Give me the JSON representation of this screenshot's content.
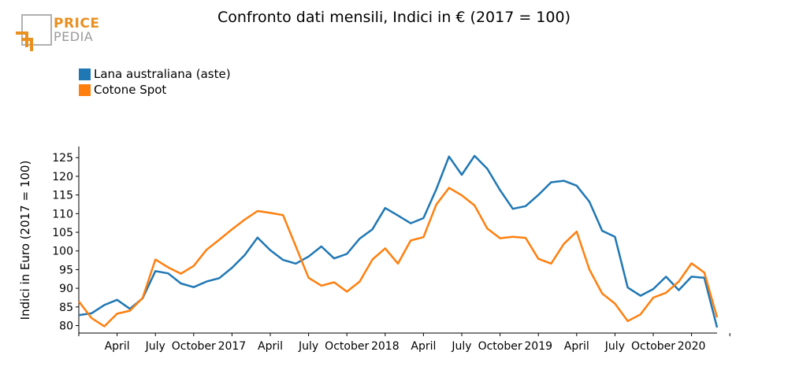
{
  "header": {
    "logo_top": "PRICE",
    "logo_bottom": "PEDIA",
    "title": "Confronto dati mensili, Indici in € (2017 = 100)"
  },
  "colors": {
    "logo_accent": "#e89020",
    "logo_gray": "#9a9a9a"
  },
  "chart_data": {
    "type": "line",
    "ylabel": "Indici in Euro (2017 = 100)",
    "xlabel": "",
    "ylim": [
      78,
      128
    ],
    "yticks": [
      80,
      85,
      90,
      95,
      100,
      105,
      110,
      115,
      120,
      125
    ],
    "x_tick_labels": [
      "",
      "April",
      "July",
      "October",
      "2017",
      "April",
      "July",
      "October",
      "2018",
      "April",
      "July",
      "October",
      "2019",
      "April",
      "July",
      "October",
      "2020",
      ""
    ],
    "x_start": "2016-01",
    "legend_position": "top-left",
    "grid": false,
    "series": [
      {
        "name": "Lana australiana (aste)",
        "color": "#1f77b4",
        "values": [
          82.8,
          83.3,
          85.5,
          86.9,
          84.5,
          87.3,
          94.6,
          94.0,
          91.3,
          90.3,
          91.8,
          92.7,
          95.5,
          98.9,
          103.6,
          100.2,
          97.6,
          96.6,
          98.5,
          101.2,
          98.0,
          99.2,
          103.3,
          105.8,
          111.5,
          109.5,
          107.4,
          108.8,
          116.5,
          125.3,
          120.4,
          125.5,
          122.0,
          116.3,
          111.3,
          112.0,
          115.0,
          118.4,
          118.8,
          117.5,
          113.2,
          105.4,
          103.8,
          90.2,
          88.0,
          89.8,
          93.1,
          89.5,
          93.1,
          92.8,
          79.5
        ]
      },
      {
        "name": "Cotone Spot",
        "color": "#ff7f0e",
        "values": [
          86.5,
          82.0,
          79.8,
          83.2,
          84.0,
          87.4,
          97.7,
          95.6,
          93.9,
          96.0,
          100.3,
          103.0,
          105.8,
          108.4,
          110.7,
          110.2,
          109.6,
          101.2,
          92.8,
          90.7,
          91.6,
          89.1,
          91.8,
          97.7,
          100.7,
          96.6,
          102.8,
          103.7,
          112.4,
          116.9,
          114.9,
          112.2,
          106.0,
          103.4,
          103.8,
          103.5,
          97.9,
          96.6,
          101.9,
          105.2,
          95.0,
          88.6,
          85.9,
          81.2,
          83.0,
          87.5,
          88.8,
          91.8,
          96.7,
          94.2,
          82.2
        ]
      }
    ]
  }
}
